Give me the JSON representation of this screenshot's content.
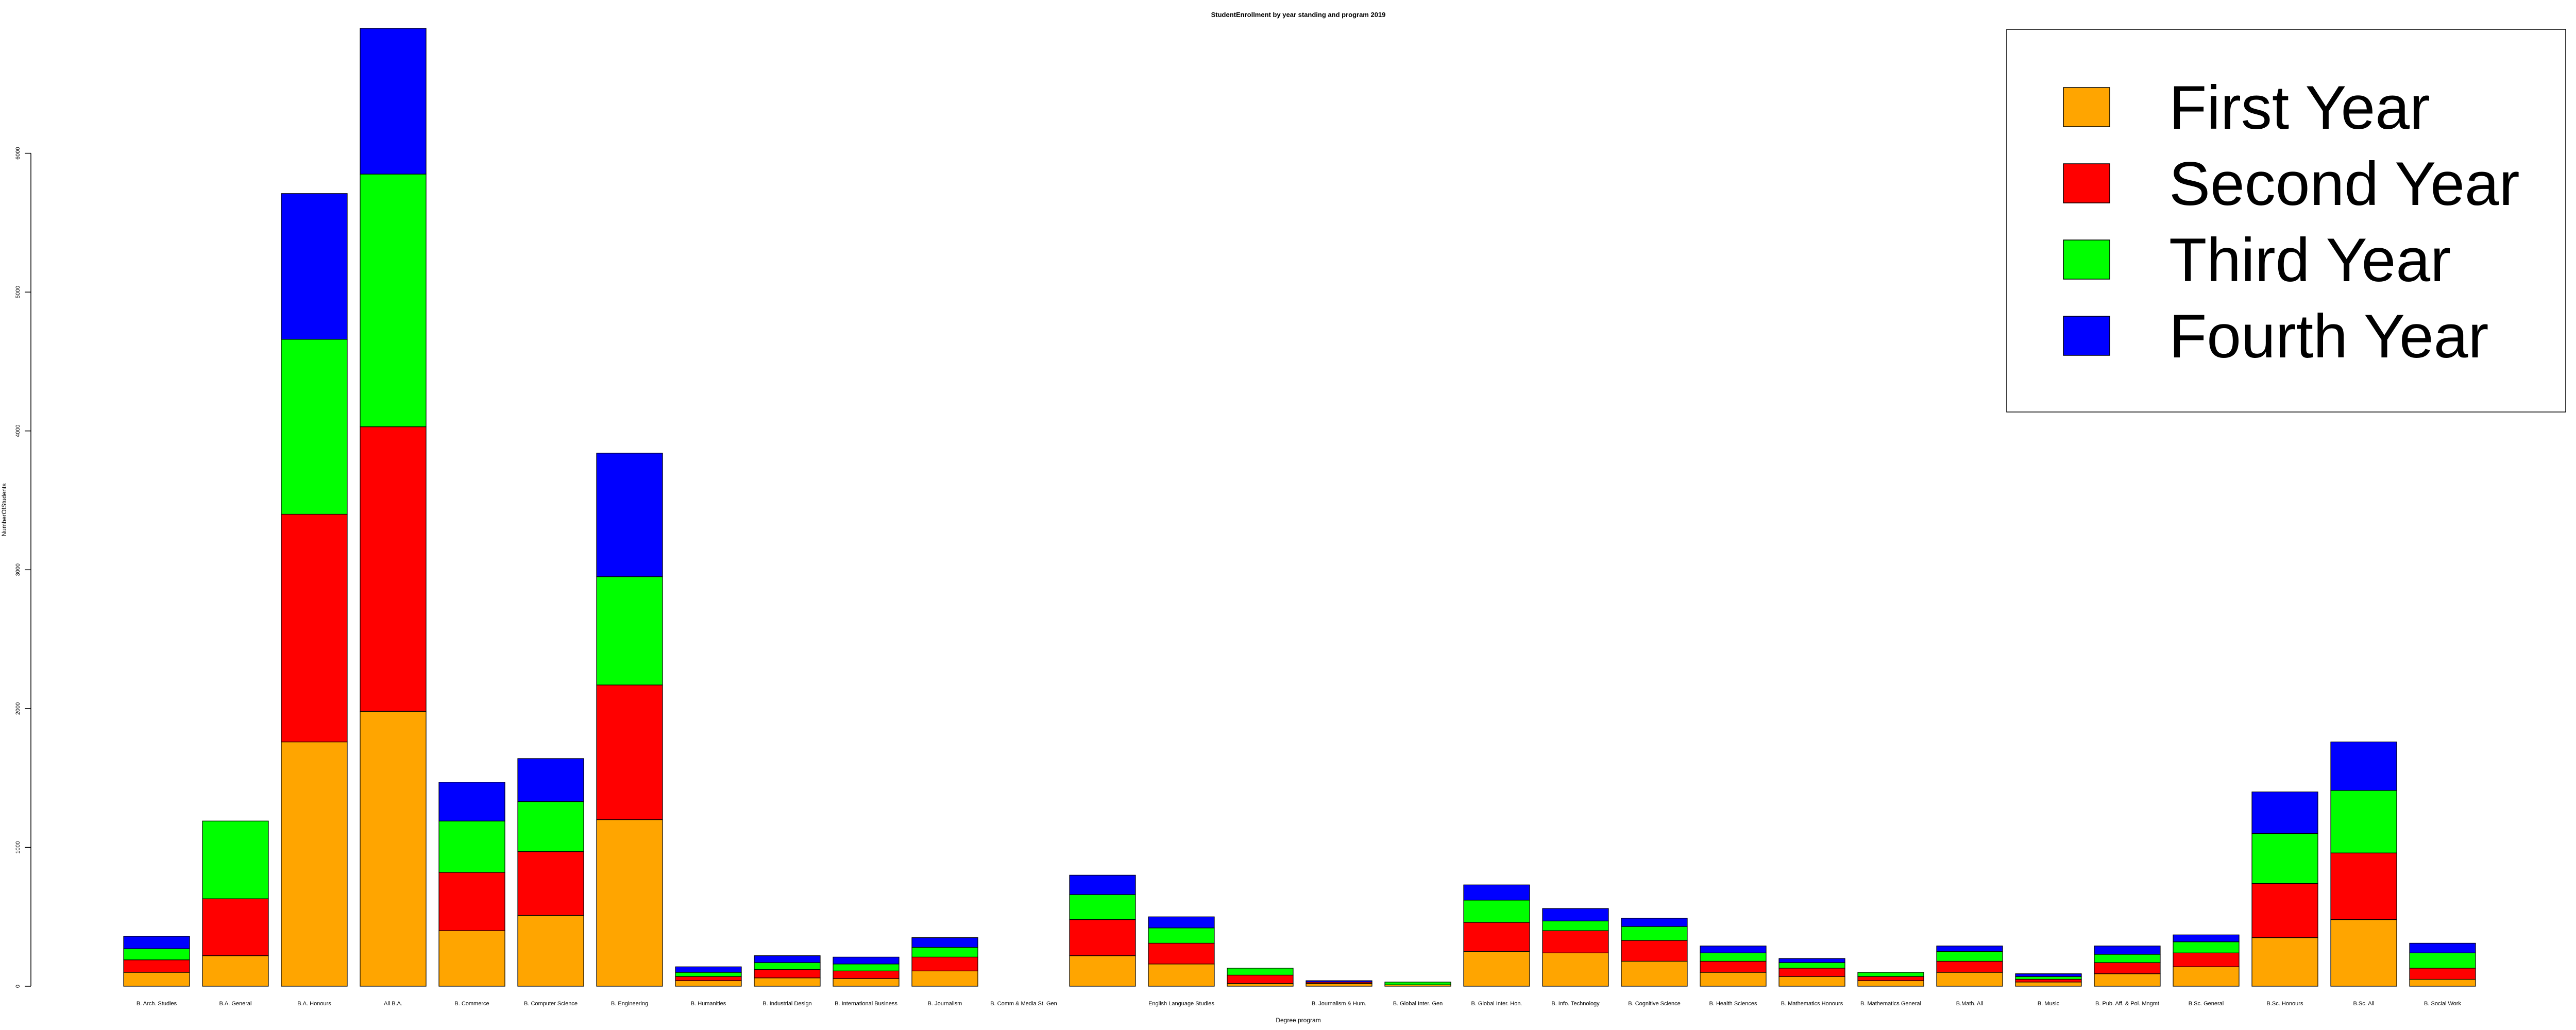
{
  "chart_data": {
    "type": "bar",
    "stacked": true,
    "title": "StudentEnrollment by year standing and program 2019",
    "xlabel": "Degree program",
    "ylabel": "NumberOfStudents",
    "ylim": [
      0,
      6900
    ],
    "yticks": [
      0,
      1000,
      2000,
      3000,
      4000,
      5000,
      6000
    ],
    "grid": false,
    "legend_position": "top-right",
    "categories": [
      "B. Arch. Studies",
      "B.A. General",
      "B.A. Honours",
      "All B.A.",
      "B. Commerce",
      "B. Computer Science",
      "B. Engineering",
      "B. Humanities",
      "B. Industrial Design",
      "B. International Business",
      "B. Journalism",
      "B. Comm & Media St. Gen",
      "",
      "English Language Studies",
      "",
      "B. Journalism & Hum.",
      "B. Global Inter. Gen",
      "B. Global Inter. Hon.",
      "B. Info. Technology",
      "B. Cognitive Science",
      "B. Health Sciences",
      "B. Mathematics Honours",
      "B. Mathematics General",
      "B.Math. All",
      "B. Music",
      "B. Pub. Aff. & Pol. Mngmt",
      "B.Sc. General",
      "B.Sc. Honours",
      "B.Sc. All",
      "B. Social Work"
    ],
    "series": [
      {
        "name": "First Year",
        "color": "#FFA500",
        "values": [
          100,
          220,
          1760,
          1980,
          400,
          510,
          1200,
          40,
          60,
          55,
          110,
          0,
          220,
          160,
          20,
          20,
          10,
          250,
          240,
          180,
          100,
          70,
          40,
          100,
          30,
          90,
          140,
          350,
          480,
          50
        ]
      },
      {
        "name": "Second Year",
        "color": "#FF0000",
        "values": [
          90,
          410,
          1640,
          2050,
          420,
          460,
          970,
          30,
          60,
          55,
          100,
          0,
          260,
          150,
          60,
          10,
          0,
          210,
          160,
          150,
          80,
          60,
          30,
          80,
          20,
          80,
          100,
          390,
          480,
          80
        ]
      },
      {
        "name": "Third Year",
        "color": "#00FF00",
        "values": [
          80,
          560,
          1260,
          1820,
          370,
          360,
          780,
          30,
          50,
          50,
          70,
          0,
          180,
          110,
          50,
          0,
          20,
          160,
          70,
          100,
          60,
          40,
          30,
          70,
          20,
          60,
          80,
          360,
          450,
          110
        ]
      },
      {
        "name": "Fourth Year",
        "color": "#0000FF",
        "values": [
          90,
          0,
          1050,
          1050,
          280,
          310,
          890,
          40,
          50,
          50,
          70,
          0,
          140,
          80,
          0,
          10,
          0,
          110,
          90,
          60,
          50,
          30,
          0,
          40,
          20,
          60,
          50,
          300,
          350,
          70
        ]
      }
    ]
  }
}
